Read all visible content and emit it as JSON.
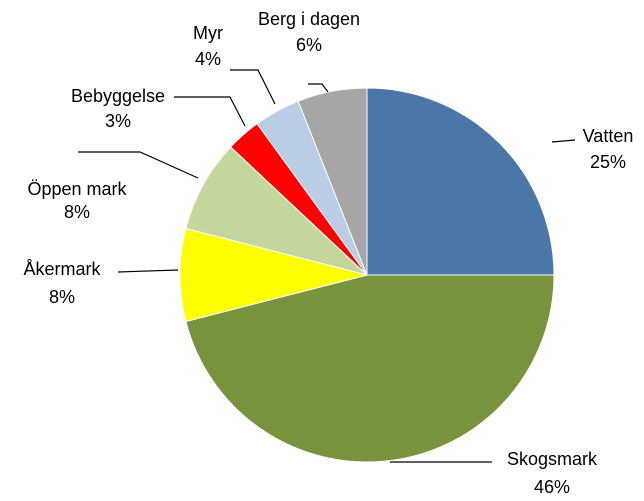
{
  "chart_data": {
    "type": "pie",
    "categories": [
      "Vatten",
      "Skogsmark",
      "Åkermark",
      "Öppen mark",
      "Bebyggelse",
      "Myr",
      "Berg i dagen"
    ],
    "values": [
      25,
      46,
      8,
      8,
      3,
      4,
      6
    ],
    "value_labels": [
      "25%",
      "46%",
      "8%",
      "8%",
      "3%",
      "4%",
      "6%"
    ],
    "colors": [
      "#4a76a8",
      "#77933c",
      "#ffff00",
      "#c3d69b",
      "#ff0000",
      "#b9cde5",
      "#a6a6a6"
    ]
  }
}
